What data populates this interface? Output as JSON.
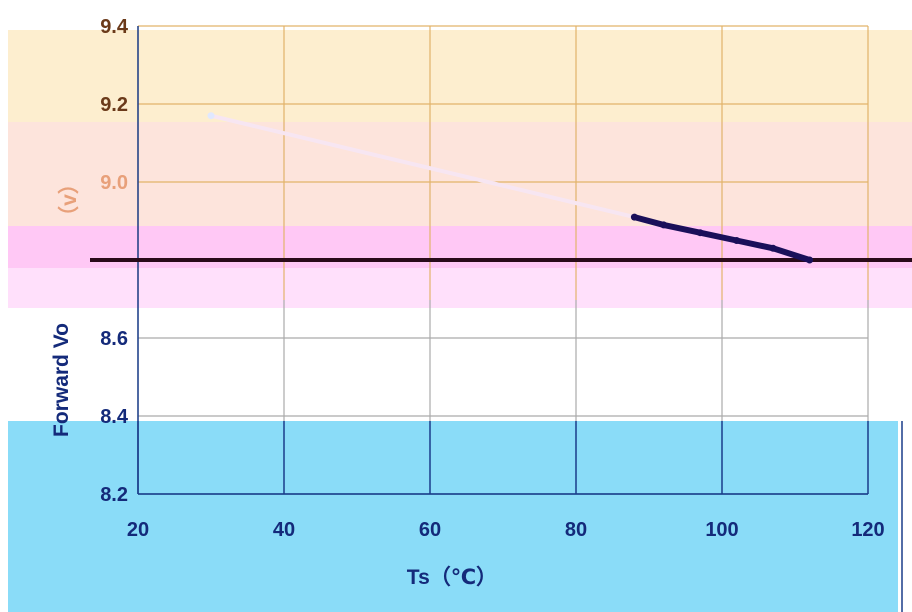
{
  "chart_data": {
    "type": "line",
    "title": "",
    "xlabel": "Ts（℃）",
    "ylabel": "Forward Voltage（V）",
    "ylabel_visible": "Forward Vo",
    "ylabel_unit_visible": "（v）",
    "xlim": [
      20,
      120
    ],
    "ylim": [
      8.2,
      9.4
    ],
    "x_ticks": [
      20,
      40,
      60,
      80,
      100,
      120
    ],
    "x_tick_labels": [
      "20",
      "40",
      "60",
      "80",
      "100",
      "120"
    ],
    "y_ticks": [
      8.2,
      8.4,
      8.6,
      8.8,
      9.0,
      9.2,
      9.4
    ],
    "y_tick_labels": [
      "8.2",
      "8.4",
      "8.6",
      "",
      "9.0",
      "9.2",
      "9.4"
    ],
    "grid": true,
    "legend": "none",
    "series": [
      {
        "values": [
          {
            "x": 30,
            "y": 9.17
          },
          {
            "x": 88,
            "y": 8.91
          },
          {
            "x": 92,
            "y": 8.89
          },
          {
            "x": 97,
            "y": 8.87
          },
          {
            "x": 102,
            "y": 8.85
          },
          {
            "x": 107,
            "y": 8.83
          },
          {
            "x": 112,
            "y": 8.8
          }
        ]
      }
    ],
    "reference_lines": [
      {
        "y": 8.8
      }
    ]
  },
  "colors": {
    "line": "#f7e6f2",
    "line_dark": "#1a0f5a",
    "ref_line": "#2a0a1a",
    "gridline_top": "#e2b36a",
    "gridline_bottom": "#1a3d8a",
    "tick_text_bottom": "#142a7a",
    "tick_text_top": "#6b3a1a",
    "band_top": "#fdeecf",
    "band_peach": "#fde4dc",
    "band_pink": "#ffc8f5",
    "band_lightpink": "#ffe0fb",
    "band_blue": "#8adcf8"
  }
}
